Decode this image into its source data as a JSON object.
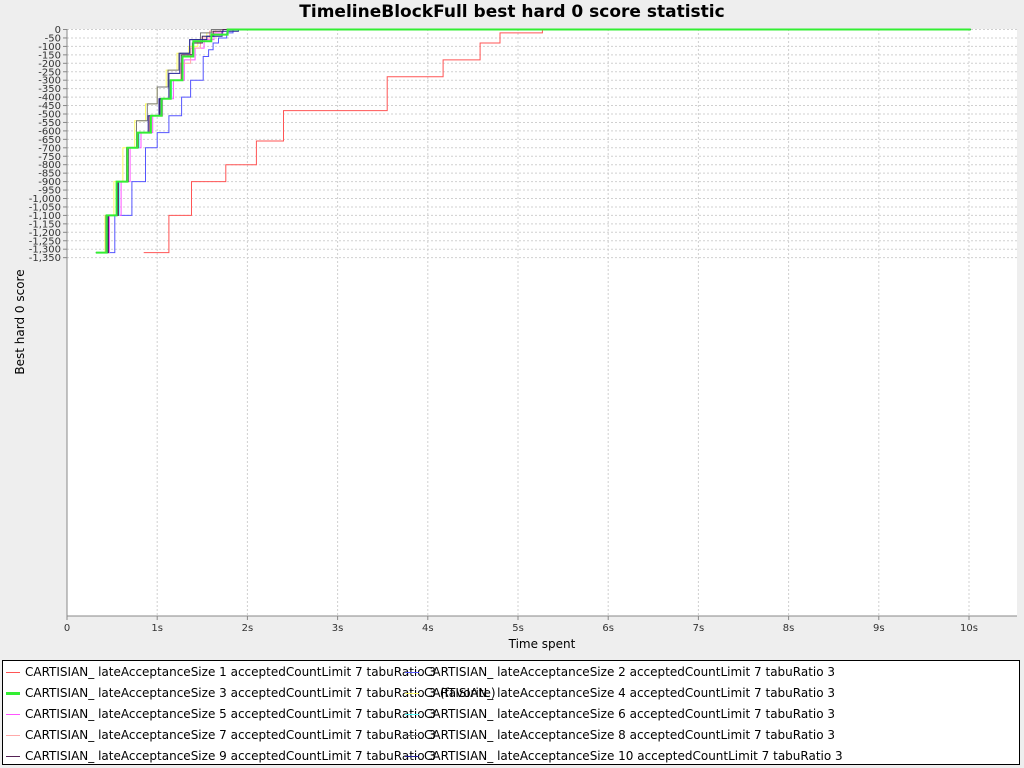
{
  "chart_data": {
    "type": "line",
    "title": "TimelineBlockFull best hard 0 score statistic",
    "xlabel": "Time spent",
    "ylabel": "Best hard 0 score",
    "xlim": [
      0,
      10.5
    ],
    "ylim": [
      -1350,
      0
    ],
    "x_ticks": [
      "0",
      "1s",
      "2s",
      "3s",
      "4s",
      "5s",
      "6s",
      "7s",
      "8s",
      "9s",
      "10s"
    ],
    "y_ticks": [
      "0",
      "-50",
      "-100",
      "-150",
      "-200",
      "-250",
      "-300",
      "-350",
      "-400",
      "-450",
      "-500",
      "-550",
      "-600",
      "-650",
      "-700",
      "-750",
      "-800",
      "-850",
      "-900",
      "-950",
      "-1,000",
      "-1,050",
      "-1,100",
      "-1,150",
      "-1,200",
      "-1,250",
      "-1,300",
      "-1,350"
    ],
    "grid": true,
    "legend_position": "bottom",
    "step_lines": true,
    "series": [
      {
        "name": "CARTISIAN_ lateAcceptanceSize 1 acceptedCountLimit 7 tabuRatio 3",
        "color": "#ff5555",
        "points": [
          [
            0.85,
            -1320
          ],
          [
            1.13,
            -1320
          ],
          [
            1.13,
            -1100
          ],
          [
            1.38,
            -1100
          ],
          [
            1.38,
            -900
          ],
          [
            1.76,
            -900
          ],
          [
            1.76,
            -800
          ],
          [
            2.1,
            -800
          ],
          [
            2.1,
            -660
          ],
          [
            2.4,
            -660
          ],
          [
            2.4,
            -480
          ],
          [
            3.55,
            -480
          ],
          [
            3.55,
            -280
          ],
          [
            4.17,
            -280
          ],
          [
            4.17,
            -180
          ],
          [
            4.58,
            -180
          ],
          [
            4.58,
            -80
          ],
          [
            4.8,
            -80
          ],
          [
            4.8,
            -20
          ],
          [
            5.27,
            -20
          ],
          [
            5.27,
            0
          ],
          [
            10.02,
            0
          ]
        ]
      },
      {
        "name": "CARTISIAN_ lateAcceptanceSize 2 acceptedCountLimit 7 tabuRatio 3",
        "color": "#5555ff",
        "points": [
          [
            0.35,
            -1320
          ],
          [
            0.53,
            -1320
          ],
          [
            0.53,
            -1100
          ],
          [
            0.72,
            -1100
          ],
          [
            0.72,
            -900
          ],
          [
            0.87,
            -900
          ],
          [
            0.87,
            -700
          ],
          [
            1.0,
            -700
          ],
          [
            1.0,
            -610
          ],
          [
            1.13,
            -610
          ],
          [
            1.13,
            -510
          ],
          [
            1.27,
            -510
          ],
          [
            1.27,
            -400
          ],
          [
            1.37,
            -400
          ],
          [
            1.37,
            -300
          ],
          [
            1.51,
            -300
          ],
          [
            1.51,
            -160
          ],
          [
            1.57,
            -160
          ],
          [
            1.57,
            -120
          ],
          [
            1.62,
            -120
          ],
          [
            1.62,
            -80
          ],
          [
            1.68,
            -80
          ],
          [
            1.68,
            -50
          ],
          [
            1.77,
            -50
          ],
          [
            1.77,
            -20
          ],
          [
            1.84,
            -20
          ],
          [
            1.84,
            0
          ],
          [
            10.02,
            0
          ]
        ]
      },
      {
        "name": "CARTISIAN_ lateAcceptanceSize 3 acceptedCountLimit 7 tabuRatio 3 (favorite)",
        "color": "#33ee33",
        "points": [
          [
            0.32,
            -1320
          ],
          [
            0.44,
            -1320
          ],
          [
            0.44,
            -1100
          ],
          [
            0.55,
            -1100
          ],
          [
            0.55,
            -900
          ],
          [
            0.67,
            -900
          ],
          [
            0.67,
            -700
          ],
          [
            0.78,
            -700
          ],
          [
            0.78,
            -610
          ],
          [
            0.93,
            -610
          ],
          [
            0.93,
            -510
          ],
          [
            1.05,
            -510
          ],
          [
            1.05,
            -410
          ],
          [
            1.15,
            -410
          ],
          [
            1.15,
            -300
          ],
          [
            1.28,
            -300
          ],
          [
            1.28,
            -160
          ],
          [
            1.4,
            -160
          ],
          [
            1.4,
            -70
          ],
          [
            1.6,
            -70
          ],
          [
            1.6,
            -30
          ],
          [
            1.78,
            -30
          ],
          [
            1.78,
            0
          ],
          [
            10.02,
            0
          ]
        ]
      },
      {
        "name": "CARTISIAN_ lateAcceptanceSize 4 acceptedCountLimit 7 tabuRatio 3",
        "color": "#ffff66",
        "points": [
          [
            0.32,
            -1320
          ],
          [
            0.42,
            -1320
          ],
          [
            0.42,
            -1100
          ],
          [
            0.52,
            -1100
          ],
          [
            0.52,
            -900
          ],
          [
            0.62,
            -900
          ],
          [
            0.62,
            -700
          ],
          [
            0.75,
            -700
          ],
          [
            0.75,
            -540
          ],
          [
            0.87,
            -540
          ],
          [
            0.87,
            -440
          ],
          [
            1.0,
            -440
          ],
          [
            1.0,
            -340
          ],
          [
            1.1,
            -340
          ],
          [
            1.1,
            -240
          ],
          [
            1.22,
            -240
          ],
          [
            1.22,
            -140
          ],
          [
            1.35,
            -140
          ],
          [
            1.35,
            -100
          ],
          [
            1.45,
            -100
          ],
          [
            1.45,
            -60
          ],
          [
            1.55,
            -60
          ],
          [
            1.55,
            -20
          ],
          [
            1.65,
            -20
          ],
          [
            1.65,
            0
          ],
          [
            10.02,
            0
          ]
        ]
      },
      {
        "name": "CARTISIAN_ lateAcceptanceSize 5 acceptedCountLimit 7 tabuRatio 3",
        "color": "#ff55ff",
        "points": [
          [
            0.32,
            -1320
          ],
          [
            0.47,
            -1320
          ],
          [
            0.47,
            -1100
          ],
          [
            0.6,
            -1100
          ],
          [
            0.6,
            -900
          ],
          [
            0.7,
            -900
          ],
          [
            0.7,
            -700
          ],
          [
            0.82,
            -700
          ],
          [
            0.82,
            -610
          ],
          [
            0.95,
            -610
          ],
          [
            0.95,
            -510
          ],
          [
            1.06,
            -510
          ],
          [
            1.06,
            -410
          ],
          [
            1.18,
            -410
          ],
          [
            1.18,
            -300
          ],
          [
            1.3,
            -300
          ],
          [
            1.3,
            -180
          ],
          [
            1.42,
            -180
          ],
          [
            1.42,
            -110
          ],
          [
            1.52,
            -110
          ],
          [
            1.52,
            -60
          ],
          [
            1.63,
            -60
          ],
          [
            1.63,
            -20
          ],
          [
            1.73,
            -20
          ],
          [
            1.73,
            0
          ],
          [
            10.02,
            0
          ]
        ]
      },
      {
        "name": "CARTISIAN_ lateAcceptanceSize 6 acceptedCountLimit 7 tabuRatio 3",
        "color": "#55ffff",
        "points": [
          [
            0.32,
            -1320
          ],
          [
            0.46,
            -1320
          ],
          [
            0.46,
            -1100
          ],
          [
            0.58,
            -1100
          ],
          [
            0.58,
            -900
          ],
          [
            0.68,
            -900
          ],
          [
            0.68,
            -700
          ],
          [
            0.8,
            -700
          ],
          [
            0.8,
            -610
          ],
          [
            0.92,
            -610
          ],
          [
            0.92,
            -510
          ],
          [
            1.04,
            -510
          ],
          [
            1.04,
            -410
          ],
          [
            1.16,
            -410
          ],
          [
            1.16,
            -300
          ],
          [
            1.28,
            -300
          ],
          [
            1.28,
            -160
          ],
          [
            1.4,
            -160
          ],
          [
            1.4,
            -80
          ],
          [
            1.5,
            -80
          ],
          [
            1.5,
            -40
          ],
          [
            1.6,
            -40
          ],
          [
            1.6,
            -10
          ],
          [
            1.7,
            -10
          ],
          [
            1.7,
            0
          ],
          [
            10.02,
            0
          ]
        ]
      },
      {
        "name": "CARTISIAN_ lateAcceptanceSize 7 acceptedCountLimit 7 tabuRatio 3",
        "color": "#ffaaaa",
        "points": [
          [
            0.32,
            -1320
          ],
          [
            0.45,
            -1320
          ],
          [
            0.45,
            -1100
          ],
          [
            0.57,
            -1100
          ],
          [
            0.57,
            -900
          ],
          [
            0.68,
            -900
          ],
          [
            0.68,
            -700
          ],
          [
            0.79,
            -700
          ],
          [
            0.79,
            -610
          ],
          [
            0.91,
            -610
          ],
          [
            0.91,
            -510
          ],
          [
            1.03,
            -510
          ],
          [
            1.03,
            -410
          ],
          [
            1.14,
            -410
          ],
          [
            1.14,
            -300
          ],
          [
            1.26,
            -300
          ],
          [
            1.26,
            -200
          ],
          [
            1.37,
            -200
          ],
          [
            1.37,
            -110
          ],
          [
            1.48,
            -110
          ],
          [
            1.48,
            -50
          ],
          [
            1.58,
            -50
          ],
          [
            1.58,
            -10
          ],
          [
            1.7,
            -10
          ],
          [
            1.7,
            0
          ],
          [
            10.02,
            0
          ]
        ]
      },
      {
        "name": "CARTISIAN_ lateAcceptanceSize 8 acceptedCountLimit 7 tabuRatio 3",
        "color": "#777777",
        "points": [
          [
            0.32,
            -1320
          ],
          [
            0.43,
            -1320
          ],
          [
            0.43,
            -1100
          ],
          [
            0.55,
            -1100
          ],
          [
            0.55,
            -900
          ],
          [
            0.66,
            -900
          ],
          [
            0.66,
            -700
          ],
          [
            0.77,
            -700
          ],
          [
            0.77,
            -540
          ],
          [
            0.89,
            -540
          ],
          [
            0.89,
            -440
          ],
          [
            1.0,
            -440
          ],
          [
            1.0,
            -340
          ],
          [
            1.12,
            -340
          ],
          [
            1.12,
            -240
          ],
          [
            1.24,
            -240
          ],
          [
            1.24,
            -140
          ],
          [
            1.36,
            -140
          ],
          [
            1.36,
            -60
          ],
          [
            1.48,
            -60
          ],
          [
            1.48,
            -20
          ],
          [
            1.6,
            -20
          ],
          [
            1.6,
            0
          ],
          [
            10.02,
            0
          ]
        ]
      },
      {
        "name": "CARTISIAN_ lateAcceptanceSize 9 acceptedCountLimit 7 tabuRatio 3",
        "color": "#552255",
        "points": [
          [
            0.32,
            -1320
          ],
          [
            0.46,
            -1320
          ],
          [
            0.46,
            -1100
          ],
          [
            0.57,
            -1100
          ],
          [
            0.57,
            -900
          ],
          [
            0.68,
            -900
          ],
          [
            0.68,
            -700
          ],
          [
            0.79,
            -700
          ],
          [
            0.79,
            -610
          ],
          [
            0.92,
            -610
          ],
          [
            0.92,
            -510
          ],
          [
            1.03,
            -510
          ],
          [
            1.03,
            -410
          ],
          [
            1.15,
            -410
          ],
          [
            1.15,
            -300
          ],
          [
            1.27,
            -300
          ],
          [
            1.27,
            -150
          ],
          [
            1.39,
            -150
          ],
          [
            1.39,
            -80
          ],
          [
            1.5,
            -80
          ],
          [
            1.5,
            -40
          ],
          [
            1.62,
            -40
          ],
          [
            1.62,
            -10
          ],
          [
            1.73,
            -10
          ],
          [
            1.73,
            0
          ],
          [
            10.02,
            0
          ]
        ]
      },
      {
        "name": "CARTISIAN_ lateAcceptanceSize 10 acceptedCountLimit 7 tabuRatio 3",
        "color": "#222299",
        "points": [
          [
            0.32,
            -1320
          ],
          [
            0.45,
            -1320
          ],
          [
            0.45,
            -1100
          ],
          [
            0.56,
            -1100
          ],
          [
            0.56,
            -900
          ],
          [
            0.67,
            -900
          ],
          [
            0.67,
            -700
          ],
          [
            0.78,
            -700
          ],
          [
            0.78,
            -610
          ],
          [
            0.9,
            -610
          ],
          [
            0.9,
            -510
          ],
          [
            1.02,
            -510
          ],
          [
            1.02,
            -410
          ],
          [
            1.13,
            -410
          ],
          [
            1.13,
            -260
          ],
          [
            1.25,
            -260
          ],
          [
            1.25,
            -140
          ],
          [
            1.36,
            -140
          ],
          [
            1.36,
            -60
          ],
          [
            1.55,
            -60
          ],
          [
            1.55,
            -40
          ],
          [
            1.72,
            -40
          ],
          [
            1.72,
            -10
          ],
          [
            1.9,
            -10
          ],
          [
            1.9,
            0
          ],
          [
            10.02,
            0
          ]
        ]
      }
    ]
  }
}
